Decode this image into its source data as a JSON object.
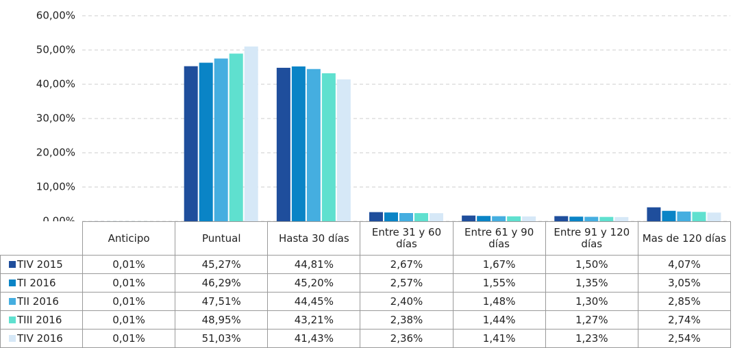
{
  "chart_data": {
    "type": "bar",
    "categories": [
      "Anticipo",
      "Puntual",
      "Hasta 30 días",
      "Entre 31 y 60 días",
      "Entre 61 y 90 días",
      "Entre 91 y 120 días",
      "Mas de 120 días"
    ],
    "series": [
      {
        "name": "TIV 2015",
        "color": "#1f4e9c",
        "values": [
          0.01,
          45.27,
          44.81,
          2.67,
          1.67,
          1.5,
          4.07
        ],
        "value_labels": [
          "0,01%",
          "45,27%",
          "44,81%",
          "2,67%",
          "1,67%",
          "1,50%",
          "4,07%"
        ]
      },
      {
        "name": "TI 2016",
        "color": "#0a84c6",
        "values": [
          0.01,
          46.29,
          45.2,
          2.57,
          1.55,
          1.35,
          3.05
        ],
        "value_labels": [
          "0,01%",
          "46,29%",
          "45,20%",
          "2,57%",
          "1,55%",
          "1,35%",
          "3,05%"
        ]
      },
      {
        "name": "TII 2016",
        "color": "#45aee0",
        "values": [
          0.01,
          47.51,
          44.45,
          2.4,
          1.48,
          1.3,
          2.85
        ],
        "value_labels": [
          "0,01%",
          "47,51%",
          "44,45%",
          "2,40%",
          "1,48%",
          "1,30%",
          "2,85%"
        ]
      },
      {
        "name": "TIII 2016",
        "color": "#5fe0cf",
        "values": [
          0.01,
          48.95,
          43.21,
          2.38,
          1.44,
          1.27,
          2.74
        ],
        "value_labels": [
          "0,01%",
          "48,95%",
          "43,21%",
          "2,38%",
          "1,44%",
          "1,27%",
          "2,74%"
        ]
      },
      {
        "name": "TIV 2016",
        "color": "#d6e8f7",
        "values": [
          0.01,
          51.03,
          41.43,
          2.36,
          1.41,
          1.23,
          2.54
        ],
        "value_labels": [
          "0,01%",
          "51,03%",
          "41,43%",
          "2,36%",
          "1,41%",
          "1,23%",
          "2,54%"
        ]
      }
    ],
    "ylim": [
      0,
      60
    ],
    "yticks": [
      {
        "value": 0,
        "label": "0,00%"
      },
      {
        "value": 10,
        "label": "10,00%"
      },
      {
        "value": 20,
        "label": "20,00%"
      },
      {
        "value": 30,
        "label": "30,00%"
      },
      {
        "value": 40,
        "label": "40,00%"
      },
      {
        "value": 50,
        "label": "50,00%"
      },
      {
        "value": 60,
        "label": "60,00%"
      }
    ],
    "grid": true
  }
}
